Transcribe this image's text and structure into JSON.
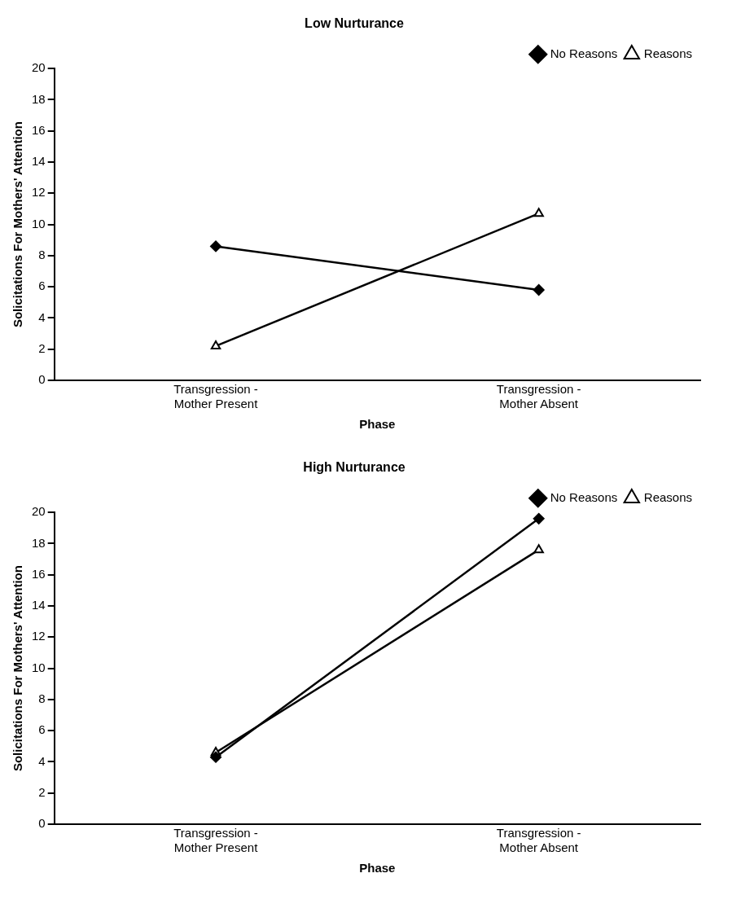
{
  "chart_data": [
    {
      "type": "line",
      "title": "Low Nurturance",
      "xlabel": "Phase",
      "ylabel": "Solicitations For Mothers' Attention",
      "categories": [
        "Transgression - Mother Present",
        "Transgression - Mother Absent"
      ],
      "ylim": [
        0,
        20
      ],
      "yticks": [
        0,
        2,
        4,
        6,
        8,
        10,
        12,
        14,
        16,
        18,
        20
      ],
      "grid": false,
      "legend": "top right",
      "line_style": "solid",
      "series": [
        {
          "name": "No Reasons",
          "color": "#000000",
          "marker": "diamond",
          "values": [
            8.6,
            5.8
          ]
        },
        {
          "name": "Reasons",
          "color": "#000000",
          "marker": "triangle",
          "values": [
            2.2,
            10.7
          ]
        }
      ]
    },
    {
      "type": "line",
      "title": "High Nurturance",
      "xlabel": "Phase",
      "ylabel": "Solicitations For Mothers' Attention",
      "categories": [
        "Transgression - Mother Present",
        "Transgression - Mother Absent"
      ],
      "ylim": [
        0,
        20
      ],
      "yticks": [
        0,
        2,
        4,
        6,
        8,
        10,
        12,
        14,
        16,
        18,
        20
      ],
      "grid": false,
      "legend": "top right",
      "line_style": "solid",
      "series": [
        {
          "name": "No Reasons",
          "color": "#000000",
          "marker": "diamond",
          "values": [
            4.3,
            19.6
          ]
        },
        {
          "name": "Reasons",
          "color": "#000000",
          "marker": "triangle",
          "values": [
            4.6,
            17.6
          ]
        }
      ]
    }
  ]
}
